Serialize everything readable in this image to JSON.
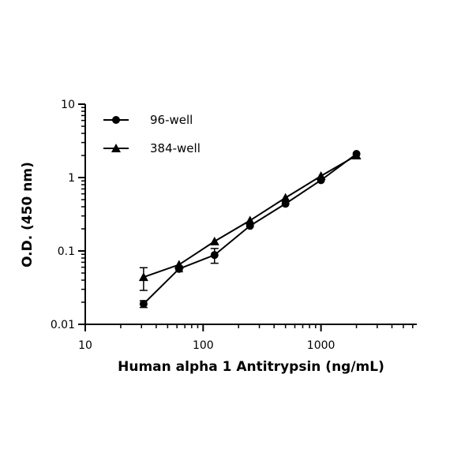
{
  "chart_data": {
    "type": "scatter",
    "xlabel": "Human alpha 1 Antitrypsin (ng/mL)",
    "ylabel": "O.D. (450 nm)",
    "xscale": "log",
    "yscale": "log",
    "xlim": [
      10,
      6500
    ],
    "ylim": [
      0.01,
      10
    ],
    "xticks": [
      10,
      100,
      1000
    ],
    "yticks": [
      0.01,
      0.1,
      1,
      10
    ],
    "legend": "upper left",
    "x": [
      31.25,
      62.5,
      125,
      250,
      500,
      1000,
      2000
    ],
    "series": [
      {
        "name": "96-well",
        "color": "#000000",
        "marker": "circle",
        "values": [
          0.019,
          0.057,
          0.088,
          0.22,
          0.44,
          0.92,
          2.1
        ],
        "errors": [
          0.002,
          0.005,
          0.02,
          null,
          null,
          null,
          null
        ]
      },
      {
        "name": "384-well",
        "color": "#000000",
        "marker": "triangle",
        "values": [
          0.044,
          0.065,
          0.135,
          0.26,
          0.53,
          1.05,
          2.0
        ],
        "errors": [
          0.015,
          null,
          null,
          null,
          null,
          null,
          null
        ]
      }
    ]
  }
}
